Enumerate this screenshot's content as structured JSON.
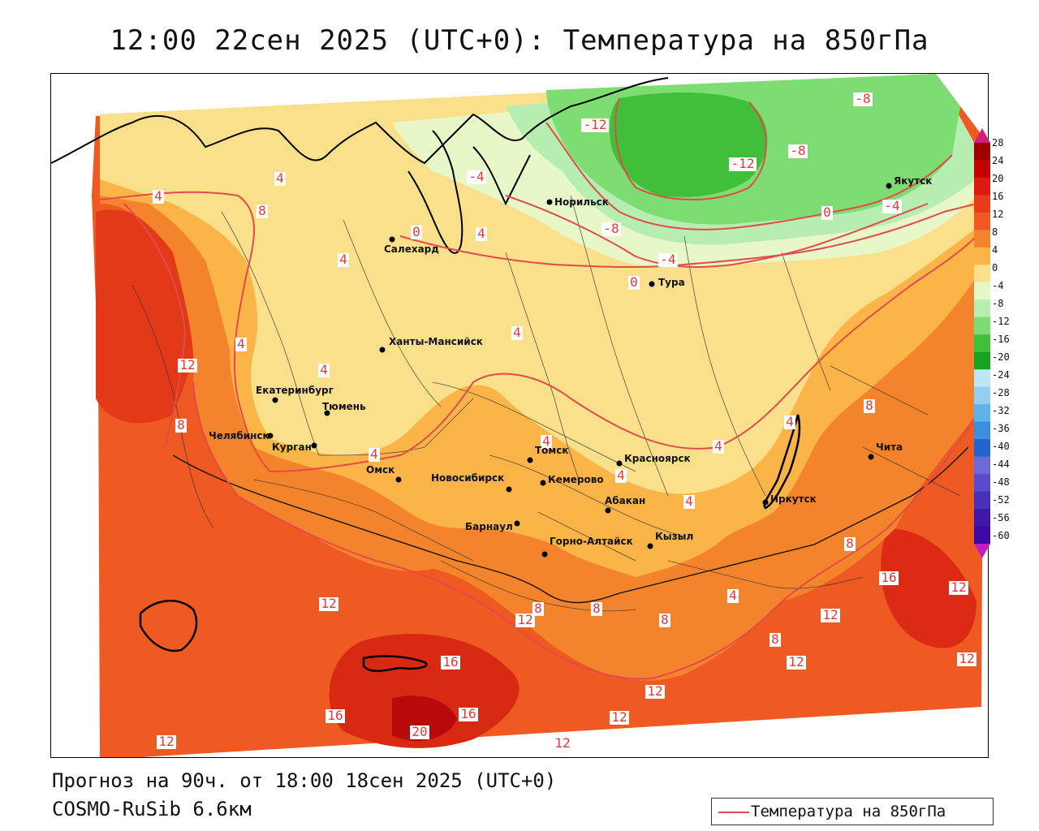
{
  "title": "12:00 22сен 2025 (UTC+0): Температура на 850гПа",
  "footer": {
    "forecast": "Прогноз на 90ч. от 18:00 18сен 2025 (UTC+0)",
    "model": "COSMO-RuSib 6.6км"
  },
  "legend": {
    "label": "Температура на 850гПа",
    "line_color": "#e34b4b"
  },
  "colorbar": {
    "ticks": [
      "28",
      "24",
      "20",
      "16",
      "12",
      "8",
      "4",
      "0",
      "-4",
      "-8",
      "-12",
      "-16",
      "-20",
      "-24",
      "-28",
      "-32",
      "-36",
      "-40",
      "-44",
      "-48",
      "-52",
      "-56",
      "-60"
    ],
    "colors": [
      "#a00000",
      "#c40000",
      "#dc1a10",
      "#e83a1c",
      "#ee5a22",
      "#f4842c",
      "#fbb448",
      "#fbe08c",
      "#e8f7c8",
      "#b5eeb0",
      "#7ddc72",
      "#3fbf3a",
      "#18a020",
      "#bfe6f6",
      "#93cff0",
      "#5fb2ea",
      "#3b8ee0",
      "#2462cc",
      "#6a6ad8",
      "#5a4ccc",
      "#4a30b8",
      "#4018a8",
      "#3c0aa0"
    ]
  },
  "cities": [
    {
      "name": "Норильск"
    },
    {
      "name": "Якутск"
    },
    {
      "name": "Салехард"
    },
    {
      "name": "Тура"
    },
    {
      "name": "Ханты-Мансийск"
    },
    {
      "name": "Екатеринбург"
    },
    {
      "name": "Тюмень"
    },
    {
      "name": "Челябинск"
    },
    {
      "name": "Курган"
    },
    {
      "name": "Омск"
    },
    {
      "name": "Новосибирск"
    },
    {
      "name": "Томск"
    },
    {
      "name": "Кемерово"
    },
    {
      "name": "Барнаул"
    },
    {
      "name": "Красноярск"
    },
    {
      "name": "Абакан"
    },
    {
      "name": "Горно-Алтайск"
    },
    {
      "name": "Кызыл"
    },
    {
      "name": "Иркутск"
    },
    {
      "name": "Чита"
    }
  ],
  "contour_labels": [
    "-12",
    "-8",
    "-8",
    "-12",
    "-4",
    "-8",
    "-4",
    "-4",
    "0",
    "0",
    "0",
    "4",
    "4",
    "4",
    "4",
    "4",
    "4",
    "4",
    "4",
    "4",
    "4",
    "4",
    "4",
    "8",
    "8",
    "8",
    "8",
    "8",
    "8",
    "8",
    "12",
    "12",
    "12",
    "12",
    "12",
    "12",
    "12",
    "12",
    "12",
    "12",
    "12",
    "16",
    "16",
    "16",
    "16",
    "20",
    "8",
    "4",
    "4"
  ]
}
